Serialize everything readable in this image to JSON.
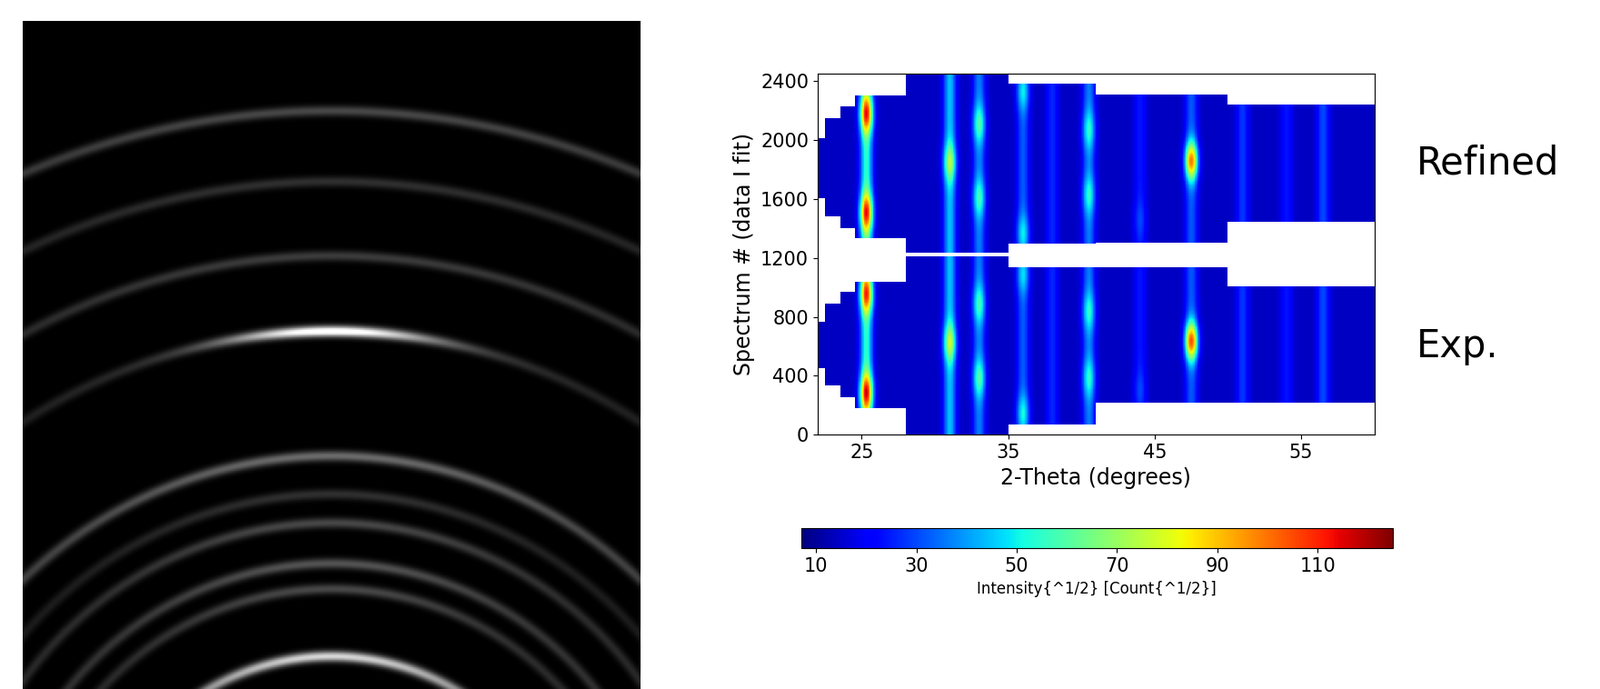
{
  "chart_data": [
    {
      "type": "image",
      "tick_labels": false,
      "rings": [
        {
          "two_theta": 25.3,
          "intensity": 0.9,
          "spot_intensity": 0
        },
        {
          "two_theta": 31,
          "intensity": 0.3,
          "spot_intensity": 0
        },
        {
          "two_theta": 33,
          "intensity": 0.35,
          "spot_intensity": 0
        },
        {
          "two_theta": 36,
          "intensity": 0.3,
          "spot_intensity": 0
        },
        {
          "two_theta": 38,
          "intensity": 0.2,
          "spot_intensity": 0
        },
        {
          "two_theta": 40.5,
          "intensity": 0.45,
          "spot_intensity": 0
        },
        {
          "two_theta": 47.5,
          "intensity": 0.2,
          "spot_intensity": 1.0
        },
        {
          "two_theta": 51,
          "intensity": 0.25,
          "spot_intensity": 0
        },
        {
          "two_theta": 54,
          "intensity": 0.2,
          "spot_intensity": 0
        },
        {
          "two_theta": 56.5,
          "intensity": 0.3,
          "spot_intensity": 0
        }
      ]
    },
    {
      "type": "heatmap",
      "x_label": "2-Theta (degrees)",
      "y_label": "Spectrum # (data I fit)",
      "xlim": [
        22,
        60
      ],
      "xticks": [
        25,
        35,
        45,
        55
      ],
      "ylim": [
        0,
        2450
      ],
      "yticks": [
        0,
        400,
        800,
        1200,
        1600,
        2000,
        2400
      ],
      "colorbar": {
        "label": "Intensity{^1/2} [Count{^1/2}]",
        "range": [
          7,
          125
        ],
        "ticks": [
          10,
          30,
          50,
          70,
          90,
          110
        ]
      },
      "background": 14,
      "reflections": [
        {
          "two_theta": 25.3,
          "intensity": 40
        },
        {
          "two_theta": 31,
          "intensity": 30
        },
        {
          "two_theta": 33,
          "intensity": 22
        },
        {
          "two_theta": 36,
          "intensity": 18
        },
        {
          "two_theta": 38,
          "intensity": 12
        },
        {
          "two_theta": 40.5,
          "intensity": 22
        },
        {
          "two_theta": 44,
          "intensity": 10
        },
        {
          "two_theta": 47.5,
          "intensity": 18
        },
        {
          "two_theta": 51,
          "intensity": 14
        },
        {
          "two_theta": 54,
          "intensity": 10
        },
        {
          "two_theta": 56.5,
          "intensity": 16
        }
      ],
      "blocks": [
        {
          "name": "Refined",
          "segments": [
            {
              "x": [
                24.5,
                28
              ],
              "y": [
                1330,
                2290
              ]
            },
            {
              "x": [
                23.5,
                24.5
              ],
              "y": [
                1400,
                2220
              ]
            },
            {
              "x": [
                22.5,
                23.5
              ],
              "y": [
                1480,
                2140
              ]
            },
            {
              "x": [
                22,
                22.5
              ],
              "y": [
                1600,
                2000
              ]
            },
            {
              "x": [
                28,
                35
              ],
              "y": [
                1230,
                2450
              ]
            },
            {
              "x": [
                35,
                41
              ],
              "y": [
                1290,
                2370
              ]
            },
            {
              "x": [
                41,
                50
              ],
              "y": [
                1300,
                2300
              ]
            },
            {
              "x": [
                50,
                60
              ],
              "y": [
                1440,
                2230
              ]
            }
          ],
          "spots": [
            {
              "two_theta": 25.3,
              "spectrum": 1500,
              "intensity": 115
            },
            {
              "two_theta": 25.3,
              "spectrum": 2170,
              "intensity": 115
            },
            {
              "two_theta": 31,
              "spectrum": 1840,
              "intensity": 75
            },
            {
              "two_theta": 33,
              "spectrum": 1600,
              "intensity": 58
            },
            {
              "two_theta": 33,
              "spectrum": 2100,
              "intensity": 60
            },
            {
              "two_theta": 36,
              "spectrum": 1360,
              "intensity": 50
            },
            {
              "two_theta": 36,
              "spectrum": 2320,
              "intensity": 50
            },
            {
              "two_theta": 40.5,
              "spectrum": 1620,
              "intensity": 55
            },
            {
              "two_theta": 40.5,
              "spectrum": 2060,
              "intensity": 55
            },
            {
              "two_theta": 44,
              "spectrum": 1450,
              "intensity": 30
            },
            {
              "two_theta": 47.5,
              "spectrum": 1850,
              "intensity": 100
            }
          ]
        },
        {
          "name": "Exp.",
          "segments": [
            {
              "x": [
                24.5,
                28
              ],
              "y": [
                180,
                1030
              ]
            },
            {
              "x": [
                23.5,
                24.5
              ],
              "y": [
                250,
                960
              ]
            },
            {
              "x": [
                22.5,
                23.5
              ],
              "y": [
                330,
                880
              ]
            },
            {
              "x": [
                22,
                22.5
              ],
              "y": [
                450,
                760
              ]
            },
            {
              "x": [
                28,
                35
              ],
              "y": [
                0,
                1200
              ]
            },
            {
              "x": [
                35,
                41
              ],
              "y": [
                70,
                1130
              ]
            },
            {
              "x": [
                41,
                50
              ],
              "y": [
                215,
                1130
              ]
            },
            {
              "x": [
                50,
                60
              ],
              "y": [
                215,
                1000
              ]
            }
          ],
          "spots": [
            {
              "two_theta": 25.3,
              "spectrum": 280,
              "intensity": 118
            },
            {
              "two_theta": 25.3,
              "spectrum": 950,
              "intensity": 112
            },
            {
              "two_theta": 31,
              "spectrum": 620,
              "intensity": 78
            },
            {
              "two_theta": 33,
              "spectrum": 380,
              "intensity": 60
            },
            {
              "two_theta": 33,
              "spectrum": 880,
              "intensity": 58
            },
            {
              "two_theta": 36,
              "spectrum": 140,
              "intensity": 52
            },
            {
              "two_theta": 36,
              "spectrum": 1080,
              "intensity": 48
            },
            {
              "two_theta": 40.5,
              "spectrum": 380,
              "intensity": 55
            },
            {
              "two_theta": 40.5,
              "spectrum": 830,
              "intensity": 55
            },
            {
              "two_theta": 44,
              "spectrum": 300,
              "intensity": 30
            },
            {
              "two_theta": 47.5,
              "spectrum": 630,
              "intensity": 105
            }
          ]
        }
      ]
    }
  ]
}
